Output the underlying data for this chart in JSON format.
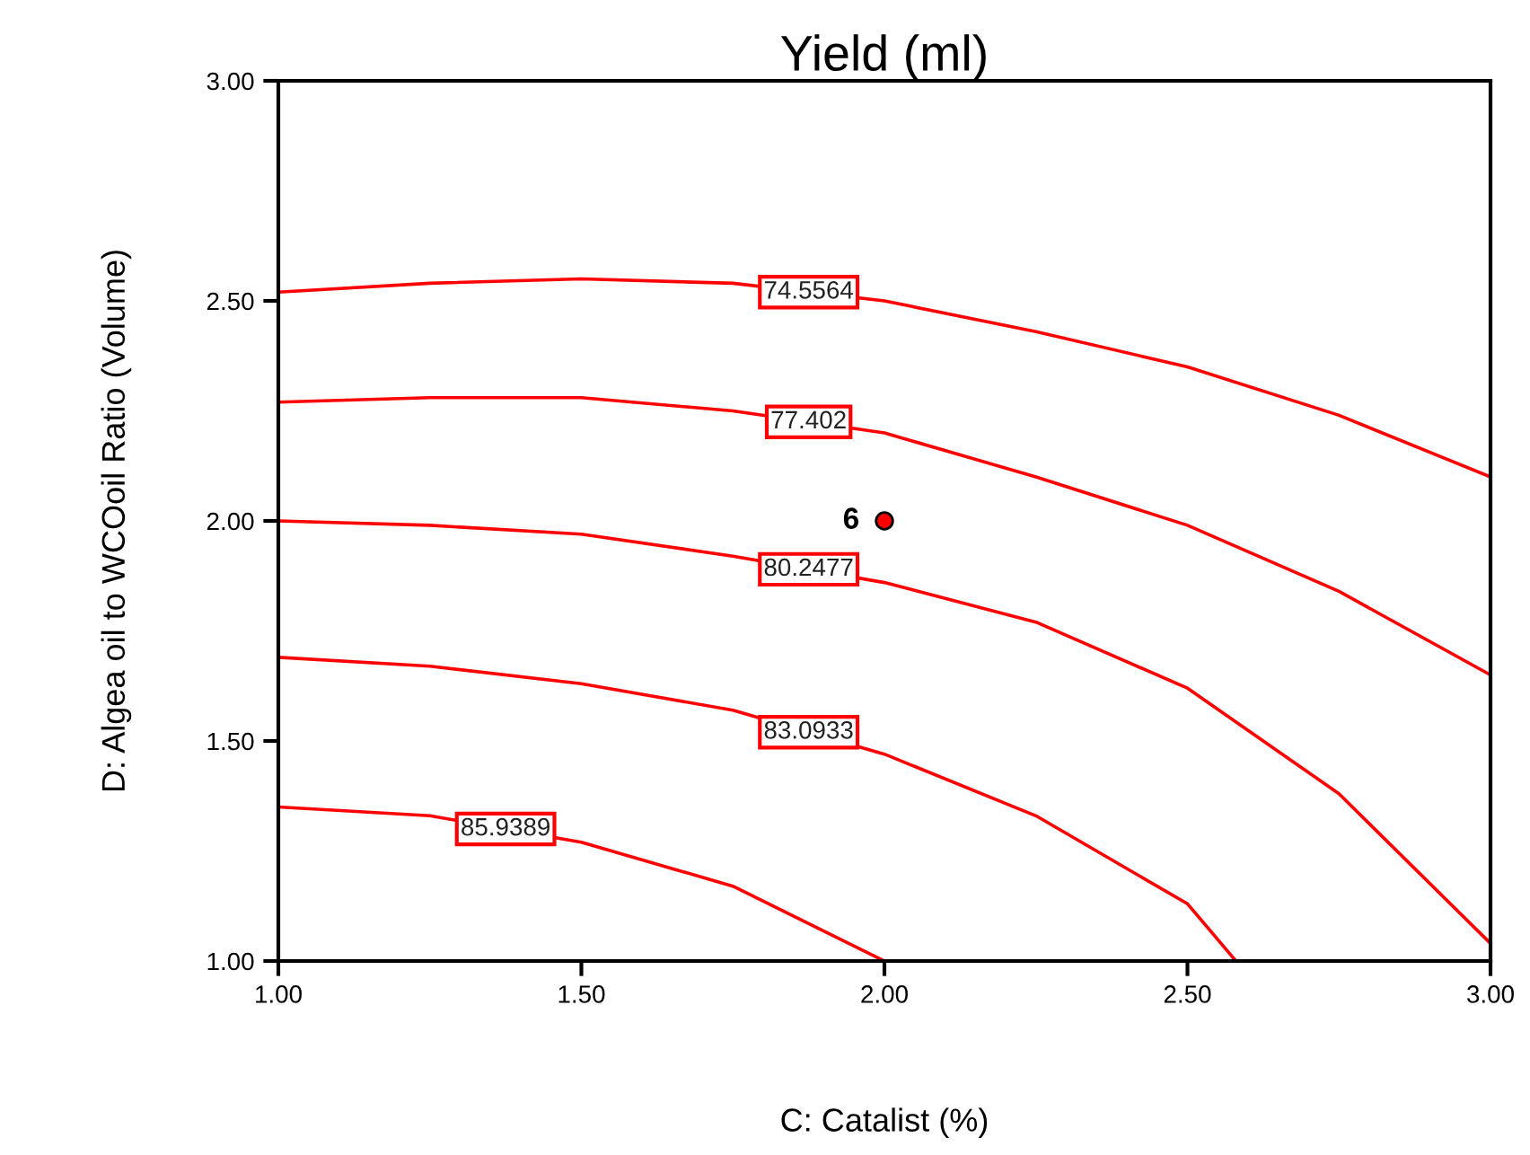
{
  "chart_data": {
    "type": "line",
    "title": "Yield (ml)",
    "xlabel": "C: Catalist (%)",
    "ylabel": "D: Algea oil to WCOoil Ratio (Volume)",
    "series": [
      {
        "name": "74.5564",
        "color": "#ff0000",
        "x": [
          1.0,
          1.25,
          1.5,
          1.75,
          2.0,
          2.25,
          2.5,
          2.75,
          3.0
        ],
        "values": [
          2.52,
          2.54,
          2.55,
          2.54,
          2.5,
          2.43,
          2.35,
          2.24,
          2.1
        ]
      },
      {
        "name": "77.402",
        "color": "#ff0000",
        "x": [
          1.0,
          1.25,
          1.5,
          1.75,
          2.0,
          2.25,
          2.5,
          2.75,
          3.0
        ],
        "values": [
          2.27,
          2.28,
          2.28,
          2.25,
          2.2,
          2.1,
          1.99,
          1.84,
          1.65
        ]
      },
      {
        "name": "80.2477",
        "color": "#ff0000",
        "x": [
          1.0,
          1.25,
          1.5,
          1.75,
          2.0,
          2.25,
          2.5,
          2.75,
          3.0
        ],
        "values": [
          2.0,
          1.99,
          1.97,
          1.92,
          1.86,
          1.77,
          1.62,
          1.38,
          1.04
        ]
      },
      {
        "name": "83.0933",
        "color": "#ff0000",
        "x": [
          1.0,
          1.25,
          1.5,
          1.75,
          2.0,
          2.25,
          2.5,
          2.58
        ],
        "values": [
          1.69,
          1.67,
          1.63,
          1.57,
          1.47,
          1.33,
          1.13,
          1.0
        ]
      },
      {
        "name": "85.9389",
        "color": "#ff0000",
        "x": [
          1.0,
          1.25,
          1.5,
          1.75,
          2.0
        ],
        "values": [
          1.35,
          1.33,
          1.27,
          1.17,
          1.0
        ]
      },
      {
        "type": "scatter",
        "color": "#ff0000",
        "x": [
          2.0
        ],
        "values": [
          2.0
        ],
        "marker": "circle"
      }
    ],
    "annotations": [
      {
        "text": "6",
        "x": 2.0,
        "y": 2.0
      }
    ],
    "xlim": [
      1.0,
      3.0
    ],
    "ylim": [
      1.0,
      3.0
    ],
    "xticks": [
      {
        "value": 1.0,
        "label": "1.00"
      },
      {
        "value": 1.5,
        "label": "1.50"
      },
      {
        "value": 2.0,
        "label": "2.00"
      },
      {
        "value": 2.5,
        "label": "2.50"
      },
      {
        "value": 3.0,
        "label": "3.00"
      }
    ],
    "yticks": [
      {
        "value": 1.0,
        "label": "1.00"
      },
      {
        "value": 1.5,
        "label": "1.50"
      },
      {
        "value": 2.0,
        "label": "2.00"
      },
      {
        "value": 2.5,
        "label": "2.50"
      },
      {
        "value": 3.0,
        "label": "3.00"
      }
    ],
    "marker": "none",
    "line_style": "solid",
    "grid": false,
    "legend": false
  }
}
